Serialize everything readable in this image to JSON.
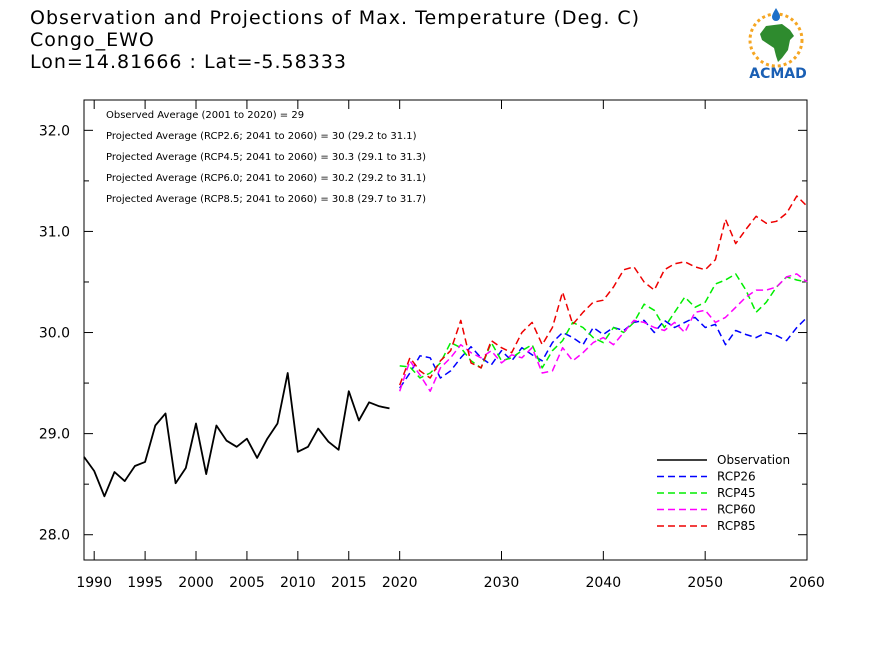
{
  "header": {
    "line1": "Observation and Projections of Max. Temperature (Deg. C)",
    "line2": "Congo_EWO",
    "line3": "Lon=14.81666 : Lat=-5.58333"
  },
  "logo": {
    "text": "ACMAD",
    "icon": "africa-map-logo-icon",
    "colors": {
      "africa": "#2e8b2e",
      "sun": "#f5a623",
      "drop": "#1e6fc8",
      "text": "#1a5fb4"
    }
  },
  "annotations": [
    "Observed Average (2001 to 2020) = 29",
    "Projected Average (RCP2.6; 2041 to 2060) = 30 (29.2 to 31.1)",
    "Projected Average (RCP4.5; 2041 to 2060) = 30.3 (29.1 to 31.3)",
    "Projected Average (RCP6.0; 2041 to 2060) = 30.2 (29.2 to 31.1)",
    "Projected Average (RCP8.5; 2041 to 2060) = 30.8 (29.7 to 31.7)"
  ],
  "chart_data": {
    "type": "line",
    "xlim": [
      1989,
      2060
    ],
    "ylim": [
      27.75,
      32.3
    ],
    "xticks": [
      1990,
      1995,
      2000,
      2005,
      2010,
      2015,
      2020,
      2030,
      2040,
      2050,
      2060
    ],
    "xtick_labels": [
      "1990",
      "1995",
      "2000",
      "2005",
      "2010",
      "2015",
      "2020",
      "2030",
      "2040",
      "2050",
      "2060"
    ],
    "yticks": [
      28.0,
      29.0,
      30.0,
      31.0,
      32.0
    ],
    "ytick_labels": [
      "28.0",
      "29.0",
      "30.0",
      "31.0",
      "32.0"
    ],
    "grid": false,
    "legend_position": "bottom-right",
    "series": [
      {
        "name": "Observation",
        "color": "#000000",
        "dashed": false,
        "x": [
          1989,
          1990,
          1991,
          1992,
          1993,
          1994,
          1995,
          1996,
          1997,
          1998,
          1999,
          2000,
          2001,
          2002,
          2003,
          2004,
          2005,
          2006,
          2007,
          2008,
          2009,
          2010,
          2011,
          2012,
          2013,
          2014,
          2015,
          2016,
          2017,
          2018,
          2019
        ],
        "y": [
          28.77,
          28.63,
          28.38,
          28.62,
          28.53,
          28.68,
          28.72,
          29.08,
          29.2,
          28.51,
          28.66,
          29.1,
          28.6,
          29.08,
          28.93,
          28.87,
          28.95,
          28.76,
          28.95,
          29.1,
          29.6,
          28.82,
          28.87,
          29.05,
          28.92,
          28.84,
          29.42,
          29.13,
          29.31,
          29.27,
          29.25
        ]
      },
      {
        "name": "RCP26",
        "color": "#0000ff",
        "dashed": true,
        "x": [
          2020,
          2021,
          2022,
          2023,
          2024,
          2025,
          2026,
          2027,
          2028,
          2029,
          2030,
          2031,
          2032,
          2033,
          2034,
          2035,
          2036,
          2037,
          2038,
          2039,
          2040,
          2041,
          2042,
          2043,
          2044,
          2045,
          2046,
          2047,
          2048,
          2049,
          2050,
          2051,
          2052,
          2053,
          2054,
          2055,
          2056,
          2057,
          2058,
          2059,
          2060
        ],
        "y": [
          29.45,
          29.6,
          29.77,
          29.75,
          29.55,
          29.62,
          29.75,
          29.86,
          29.75,
          29.68,
          29.82,
          29.72,
          29.85,
          29.78,
          29.72,
          29.9,
          30.0,
          29.95,
          29.88,
          30.05,
          29.98,
          30.05,
          30.02,
          30.1,
          30.12,
          30.0,
          30.12,
          30.05,
          30.1,
          30.15,
          30.05,
          30.08,
          29.88,
          30.02,
          29.98,
          29.95,
          30.0,
          29.97,
          29.92,
          30.05,
          30.15
        ]
      },
      {
        "name": "RCP45",
        "color": "#00ee00",
        "dashed": true,
        "x": [
          2020,
          2021,
          2022,
          2023,
          2024,
          2025,
          2026,
          2027,
          2028,
          2029,
          2030,
          2031,
          2032,
          2033,
          2034,
          2035,
          2036,
          2037,
          2038,
          2039,
          2040,
          2041,
          2042,
          2043,
          2044,
          2045,
          2046,
          2047,
          2048,
          2049,
          2050,
          2051,
          2052,
          2053,
          2054,
          2055,
          2056,
          2057,
          2058,
          2059,
          2060
        ],
        "y": [
          29.67,
          29.66,
          29.55,
          29.6,
          29.7,
          29.9,
          29.85,
          29.72,
          29.65,
          29.9,
          29.72,
          29.75,
          29.82,
          29.88,
          29.65,
          29.82,
          29.92,
          30.1,
          30.05,
          29.95,
          29.9,
          30.05,
          30.0,
          30.1,
          30.28,
          30.22,
          30.05,
          30.2,
          30.35,
          30.25,
          30.3,
          30.48,
          30.52,
          30.58,
          30.42,
          30.2,
          30.3,
          30.45,
          30.55,
          30.52,
          30.5
        ]
      },
      {
        "name": "RCP60",
        "color": "#ff00ff",
        "dashed": true,
        "x": [
          2020,
          2021,
          2022,
          2023,
          2024,
          2025,
          2026,
          2027,
          2028,
          2029,
          2030,
          2031,
          2032,
          2033,
          2034,
          2035,
          2036,
          2037,
          2038,
          2039,
          2040,
          2041,
          2042,
          2043,
          2044,
          2045,
          2046,
          2047,
          2048,
          2049,
          2050,
          2051,
          2052,
          2053,
          2054,
          2055,
          2056,
          2057,
          2058,
          2059,
          2060
        ],
        "y": [
          29.42,
          29.72,
          29.58,
          29.42,
          29.65,
          29.75,
          29.88,
          29.8,
          29.75,
          29.82,
          29.7,
          29.78,
          29.75,
          29.85,
          29.6,
          29.62,
          29.85,
          29.72,
          29.8,
          29.9,
          29.95,
          29.88,
          30.0,
          30.12,
          30.1,
          30.05,
          30.02,
          30.1,
          30.0,
          30.2,
          30.22,
          30.1,
          30.15,
          30.25,
          30.35,
          30.42,
          30.42,
          30.45,
          30.55,
          30.58,
          30.5
        ]
      },
      {
        "name": "RCP85",
        "color": "#ee0000",
        "dashed": true,
        "x": [
          2020,
          2021,
          2022,
          2023,
          2024,
          2025,
          2026,
          2027,
          2028,
          2029,
          2030,
          2031,
          2032,
          2033,
          2034,
          2035,
          2036,
          2037,
          2038,
          2039,
          2040,
          2041,
          2042,
          2043,
          2044,
          2045,
          2046,
          2047,
          2048,
          2049,
          2050,
          2051,
          2052,
          2053,
          2054,
          2055,
          2056,
          2057,
          2058,
          2059,
          2060
        ],
        "y": [
          29.48,
          29.75,
          29.62,
          29.55,
          29.72,
          29.82,
          30.12,
          29.7,
          29.65,
          29.92,
          29.85,
          29.8,
          30.0,
          30.1,
          29.88,
          30.05,
          30.4,
          30.08,
          30.2,
          30.3,
          30.32,
          30.45,
          30.62,
          30.65,
          30.5,
          30.42,
          30.62,
          30.68,
          30.7,
          30.65,
          30.62,
          30.72,
          31.12,
          30.88,
          31.02,
          31.15,
          31.08,
          31.1,
          31.18,
          31.35,
          31.25
        ]
      }
    ]
  }
}
